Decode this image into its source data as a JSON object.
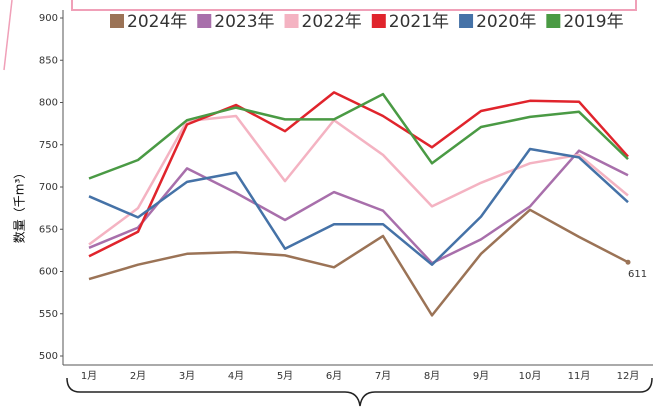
{
  "chart_data": {
    "type": "line",
    "y_label": "数量（千m³）",
    "categories": [
      "1月",
      "2月",
      "3月",
      "4月",
      "5月",
      "6月",
      "7月",
      "8月",
      "9月",
      "10月",
      "11月",
      "12月"
    ],
    "series": [
      {
        "name": "2024年",
        "color": "#9b7356",
        "values": [
          591,
          608,
          621,
          623,
          619,
          605,
          642,
          548,
          621,
          673,
          641,
          611
        ],
        "value_labels": [
          null,
          null,
          null,
          null,
          null,
          null,
          null,
          null,
          null,
          null,
          null,
          "611"
        ]
      },
      {
        "name": "2023年",
        "color": "#a86fab",
        "values": [
          628,
          652,
          722,
          693,
          661,
          694,
          672,
          610,
          638,
          677,
          743,
          714
        ]
      },
      {
        "name": "2022年",
        "color": "#f4b3c2",
        "values": [
          632,
          675,
          778,
          784,
          707,
          779,
          738,
          677,
          705,
          728,
          738,
          690
        ]
      },
      {
        "name": "2021年",
        "color": "#e0242c",
        "values": [
          618,
          647,
          774,
          797,
          766,
          812,
          784,
          747,
          790,
          802,
          801,
          736
        ]
      },
      {
        "name": "2020年",
        "color": "#4572a7",
        "values": [
          689,
          664,
          706,
          717,
          627,
          656,
          656,
          608,
          665,
          745,
          735,
          682
        ]
      },
      {
        "name": "2019年",
        "color": "#4a9a44",
        "values": [
          710,
          732,
          779,
          794,
          780,
          780,
          810,
          728,
          771,
          783,
          789,
          733
        ]
      }
    ],
    "ylim": [
      500,
      900
    ],
    "yticks": [
      500,
      550,
      600,
      650,
      700,
      750,
      800,
      850,
      900
    ],
    "grid": false
  }
}
